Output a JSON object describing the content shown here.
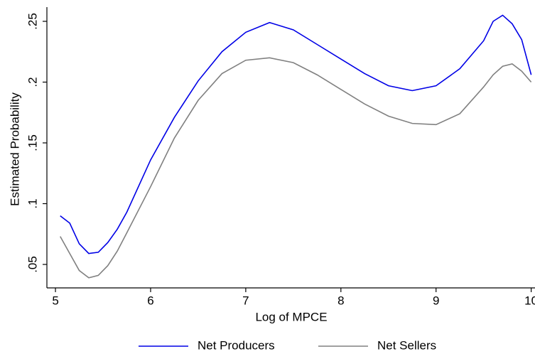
{
  "chart_data": {
    "type": "line",
    "x_label": "Log of MPCE",
    "y_label": "Estimated Probability",
    "x": [
      5.05,
      5.15,
      5.25,
      5.35,
      5.45,
      5.55,
      5.65,
      5.75,
      6.0,
      6.25,
      6.5,
      6.75,
      7.0,
      7.25,
      7.5,
      7.75,
      8.0,
      8.25,
      8.5,
      8.75,
      9.0,
      9.25,
      9.5,
      9.6,
      9.7,
      9.8,
      9.9,
      10.0
    ],
    "series": [
      {
        "name": "Net Producers",
        "color": "#0000e6",
        "values": [
          0.09,
          0.084,
          0.067,
          0.059,
          0.06,
          0.068,
          0.079,
          0.093,
          0.136,
          0.171,
          0.201,
          0.225,
          0.241,
          0.249,
          0.243,
          0.231,
          0.219,
          0.207,
          0.197,
          0.193,
          0.197,
          0.211,
          0.234,
          0.25,
          0.255,
          0.248,
          0.235,
          0.206
        ]
      },
      {
        "name": "Net Sellers",
        "color": "#808080",
        "values": [
          0.073,
          0.059,
          0.045,
          0.039,
          0.041,
          0.049,
          0.061,
          0.076,
          0.114,
          0.154,
          0.185,
          0.207,
          0.218,
          0.22,
          0.216,
          0.206,
          0.194,
          0.182,
          0.172,
          0.166,
          0.165,
          0.174,
          0.196,
          0.206,
          0.213,
          0.215,
          0.209,
          0.2
        ]
      }
    ],
    "xlim": [
      4.91,
      10.04
    ],
    "ylim": [
      0.0307,
      0.2617
    ],
    "xticks": [
      5,
      6,
      7,
      8,
      9,
      10
    ],
    "yticks": [
      {
        "value": 0.05,
        "label": ".05"
      },
      {
        "value": 0.1,
        "label": ".1"
      },
      {
        "value": 0.15,
        "label": ".15"
      },
      {
        "value": 0.2,
        "label": ".2"
      },
      {
        "value": 0.25,
        "label": ".25"
      }
    ],
    "grid": false,
    "legend_position": "bottom"
  }
}
